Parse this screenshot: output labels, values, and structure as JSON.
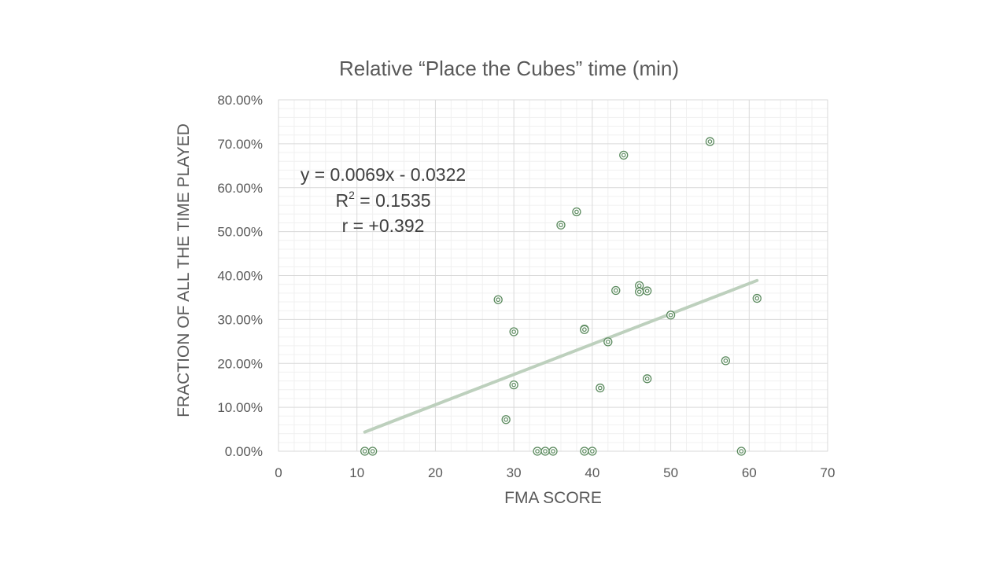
{
  "chart_data": {
    "type": "scatter",
    "title": "Relative “Place the Cubes” time (min)",
    "xlabel": "FMA SCORE",
    "ylabel": "FRACTION OF ALL THE TIME PLAYED",
    "xlim": [
      0,
      70
    ],
    "ylim": [
      0,
      0.8
    ],
    "x_ticks": [
      0,
      10,
      20,
      30,
      40,
      50,
      60,
      70
    ],
    "x_tick_labels": [
      "0",
      "10",
      "20",
      "30",
      "40",
      "50",
      "60",
      "70"
    ],
    "y_ticks": [
      0,
      0.1,
      0.2,
      0.3,
      0.4,
      0.5,
      0.6,
      0.7,
      0.8
    ],
    "y_tick_labels": [
      "0.00%",
      "10.00%",
      "20.00%",
      "30.00%",
      "40.00%",
      "50.00%",
      "60.00%",
      "70.00%",
      "80.00%"
    ],
    "grid": true,
    "legend": "none",
    "marker_color": "#5b8a5e",
    "trendline_color": "#bdd0bd",
    "series": [
      {
        "x": [
          11,
          12,
          28,
          29,
          30,
          30,
          33,
          34,
          35,
          36,
          38,
          39,
          39,
          39,
          40,
          41,
          42,
          43,
          44,
          46,
          46,
          47,
          47,
          50,
          55,
          57,
          59,
          61
        ],
        "y": [
          0.0,
          0.0,
          0.345,
          0.072,
          0.272,
          0.151,
          0.0,
          0.0,
          0.0,
          0.515,
          0.545,
          0.278,
          0.277,
          0.0,
          0.0,
          0.144,
          0.249,
          0.366,
          0.674,
          0.377,
          0.363,
          0.365,
          0.165,
          0.31,
          0.705,
          0.206,
          0.0,
          0.348
        ]
      }
    ],
    "trendline": {
      "slope": 0.0069,
      "intercept": -0.0322,
      "x_range": [
        11,
        61
      ],
      "equation": "y = 0.0069x - 0.0322",
      "r2_label": "R",
      "r2_sup": "2",
      "r2_value": " = 0.1535",
      "r_label": "r = +0.392"
    }
  }
}
